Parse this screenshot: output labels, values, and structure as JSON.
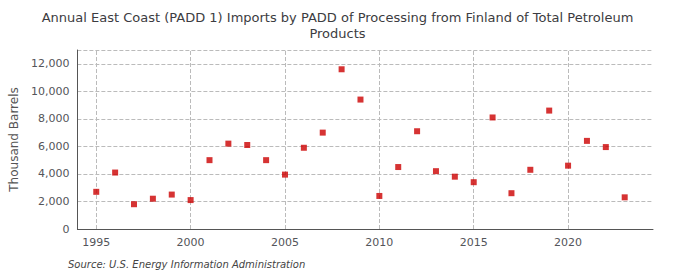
{
  "chart_data": {
    "type": "scatter",
    "title": "Annual East Coast (PADD 1) Imports by PADD of Processing from Finland of Total Petroleum\nProducts",
    "ylabel": "Thousand Barrels",
    "source": "Source: U.S. Energy Information Administration",
    "x": [
      1995,
      1996,
      1997,
      1998,
      1999,
      2000,
      2001,
      2002,
      2003,
      2004,
      2005,
      2006,
      2007,
      2008,
      2009,
      2010,
      2011,
      2012,
      2013,
      2014,
      2015,
      2016,
      2017,
      2018,
      2019,
      2020,
      2021,
      2022,
      2023
    ],
    "values": [
      2700,
      4100,
      1800,
      2200,
      2500,
      2100,
      5000,
      6200,
      6100,
      5000,
      3950,
      5900,
      7000,
      11600,
      9400,
      2400,
      4500,
      7100,
      4200,
      3800,
      3400,
      8100,
      2600,
      4300,
      8600,
      4600,
      6400,
      5950,
      2300
    ],
    "color": "#cc0000",
    "marker": "square",
    "xlim": [
      1994.0,
      2024.5
    ],
    "xticks": [
      1995,
      2000,
      2005,
      2010,
      2015,
      2020
    ],
    "ylim": [
      0,
      13000
    ],
    "yticks": [
      0,
      {
        "value": 2000,
        "label": "2,000"
      },
      {
        "value": 4000,
        "label": "4,000"
      },
      {
        "value": 6000,
        "label": "6,000"
      },
      {
        "value": 8000,
        "label": "8,000"
      },
      {
        "value": 10000,
        "label": "10,000"
      },
      {
        "value": 12000,
        "label": "12,000"
      }
    ],
    "grid": true
  }
}
